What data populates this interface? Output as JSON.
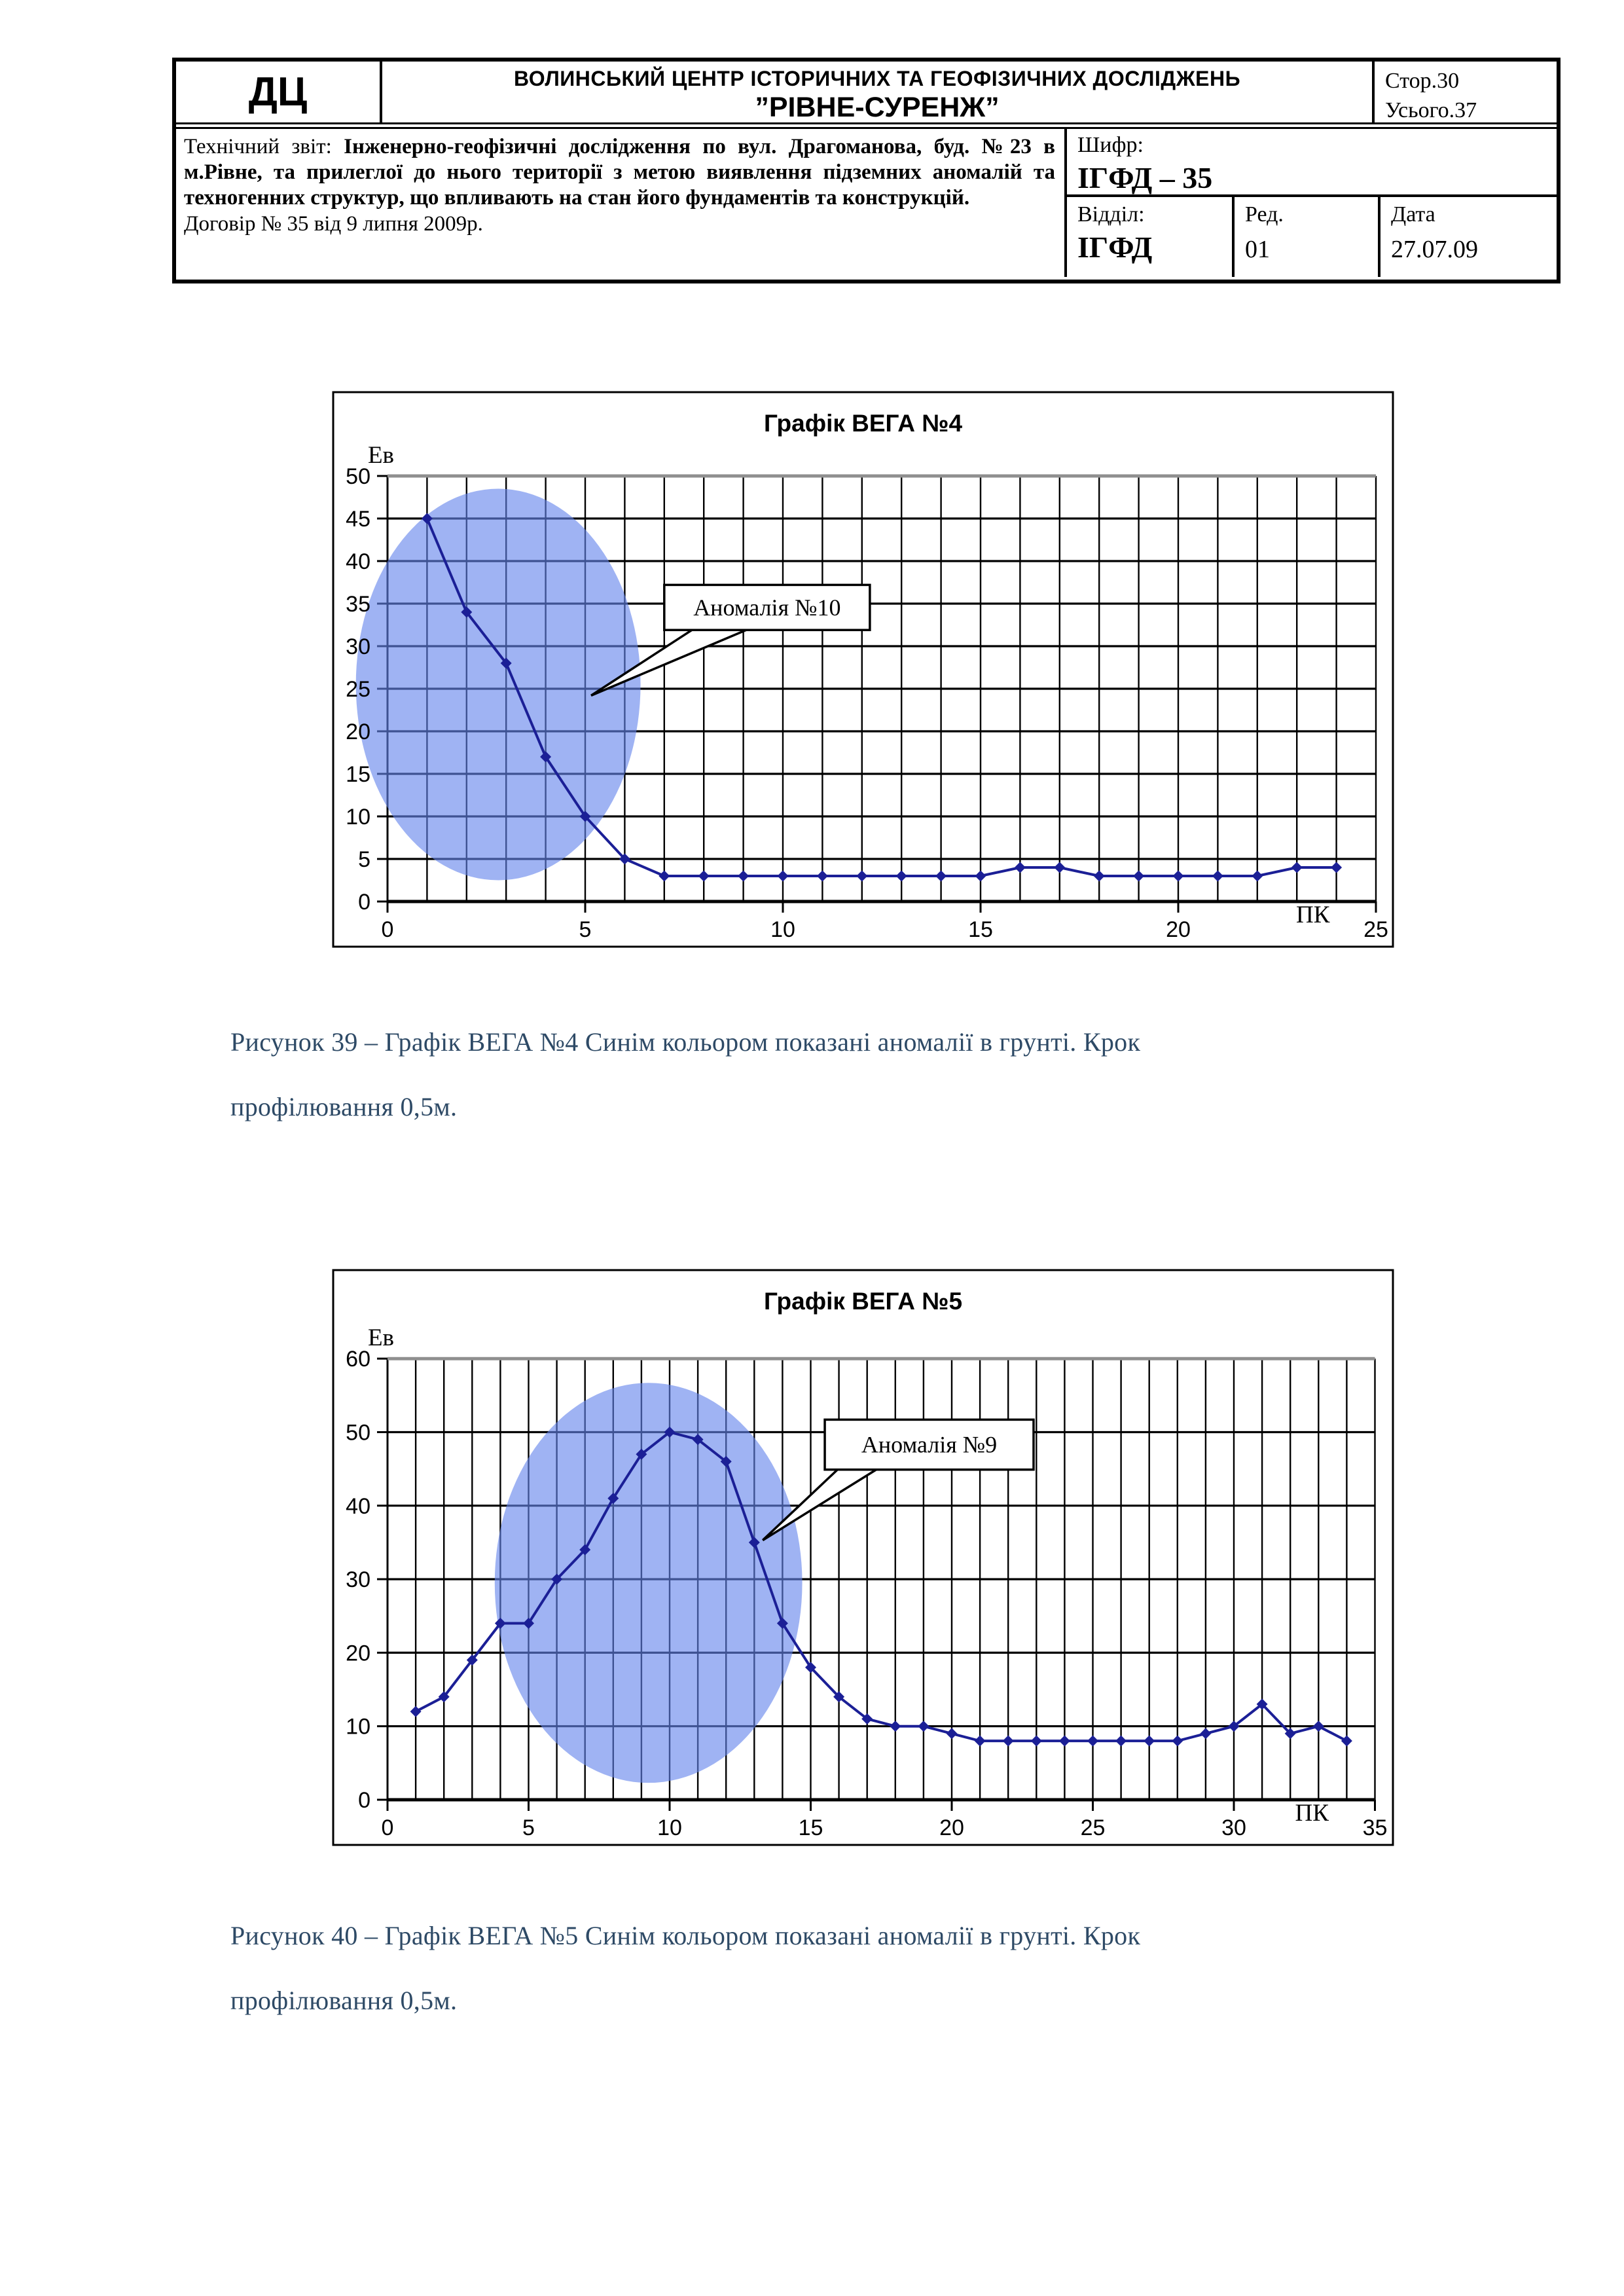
{
  "header": {
    "logo": "ДЦ",
    "org_line1": "ВОЛИНСЬКИЙ ЦЕНТР ІСТОРИЧНИХ ТА ГЕОФІЗИЧНИХ ДОСЛІДЖЕНЬ",
    "org_line2": "”РІВНЕ-СУРЕНЖ”",
    "page_label": "Стор.30",
    "total_label": "Усього.37",
    "report_intro": "Технічний звіт:",
    "report_bold": "Інженерно-геофізичні дослідження по вул. Драгоманова, буд. №23 в м.Рівне, та прилеглої до нього території з метою виявлення підземних аномалій та техногенних структур, що впливають на стан його фундаментів та конструкцій.",
    "contract": "Договір № 35 від 9 липня 2009р.",
    "cipher_label": "Шифр:",
    "cipher_value": "ІГФД – 35",
    "dept_label": "Відділ:",
    "dept_value": "ІГФД",
    "rev_label": "Ред.",
    "rev_value": "01",
    "date_label": "Дата",
    "date_value": "27.07.09"
  },
  "figures": [
    {
      "caption_line1": "Рисунок 39 – Графік ВЕГА №4 Синім кольором показані аномалії в грунті. Крок",
      "caption_line2": "профілювання 0,5м."
    },
    {
      "caption_line1": "Рисунок 40 – Графік ВЕГА №5 Синім кольором показані аномалії в грунті. Крок",
      "caption_line2": "профілювання 0,5м."
    }
  ],
  "chart_data": [
    {
      "type": "line",
      "title": "Графік ВЕГА №4",
      "ylabel": "Ев",
      "xlabel": "ПК",
      "x": [
        1,
        2,
        3,
        4,
        5,
        6,
        7,
        8,
        9,
        10,
        11,
        12,
        13,
        14,
        15,
        16,
        17,
        18,
        19,
        20,
        21,
        22,
        23,
        24
      ],
      "values": [
        45,
        34,
        28,
        17,
        10,
        5,
        3,
        3,
        3,
        3,
        3,
        3,
        3,
        3,
        3,
        4,
        4,
        3,
        3,
        3,
        3,
        3,
        4,
        4
      ],
      "xlim": [
        0,
        25
      ],
      "ylim": [
        0,
        50
      ],
      "xtick_step": 5,
      "ytick_step": 5,
      "grid_x_step": 1,
      "grid": true,
      "legend": false,
      "annotation": "Аномалія №10",
      "anomaly_ellipse": {
        "cx": 2.8,
        "cy": 25.5,
        "rx": 3.6,
        "ry": 23.0
      },
      "callout": {
        "box_x": [
          7.0,
          12.2
        ],
        "box_y": [
          31.9,
          37.2
        ],
        "target": [
          5.15,
          24.2
        ],
        "prongs": [
          7.75,
          9.15
        ]
      }
    },
    {
      "type": "line",
      "title": "Графік ВЕГА №5",
      "ylabel": "Ев",
      "xlabel": "ПК",
      "x": [
        1,
        2,
        3,
        4,
        5,
        6,
        7,
        8,
        9,
        10,
        11,
        12,
        13,
        14,
        15,
        16,
        17,
        18,
        19,
        20,
        21,
        22,
        23,
        24,
        25,
        26,
        27,
        28,
        29,
        30,
        31,
        32,
        33,
        34
      ],
      "values": [
        12,
        14,
        19,
        24,
        24,
        30,
        34,
        41,
        47,
        50,
        49,
        46,
        35,
        24,
        18,
        14,
        11,
        10,
        10,
        9,
        8,
        8,
        8,
        8,
        8,
        8,
        8,
        8,
        9,
        10,
        13,
        9,
        10,
        8
      ],
      "xlim": [
        0,
        35
      ],
      "ylim": [
        0,
        60
      ],
      "xtick_step": 5,
      "ytick_step": 10,
      "grid_x_step": 1,
      "grid": true,
      "legend": false,
      "annotation": "Аномалія №9",
      "anomaly_ellipse": {
        "cx": 9.25,
        "cy": 29.5,
        "rx": 5.45,
        "ry": 27.2
      },
      "callout": {
        "box_x": [
          15.5,
          22.9
        ],
        "box_y": [
          44.9,
          51.7
        ],
        "target": [
          13.3,
          35.3
        ],
        "prongs": [
          16.0,
          17.4
        ]
      }
    }
  ],
  "colors": {
    "series_navy": "#1b1f96",
    "anomaly_fill": "rgba(100,133,235,0.62)",
    "grid_top_gray": "#8f8f8f",
    "caption_blue": "#2E4A66"
  }
}
